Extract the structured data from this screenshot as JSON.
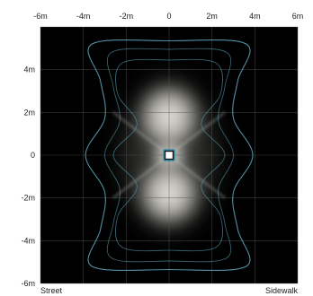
{
  "chart_data": {
    "type": "heatmap",
    "title": "",
    "xlabel": "",
    "ylabel": "",
    "x_ticks": [
      "-6m",
      "-4m",
      "-2m",
      "0",
      "2m",
      "4m",
      "6m"
    ],
    "x_tick_values": [
      -6,
      -4,
      -2,
      0,
      2,
      4,
      6
    ],
    "y_ticks": [
      "4m",
      "2m",
      "0",
      "-2m",
      "-4m",
      "-6m"
    ],
    "y_tick_values": [
      4,
      2,
      0,
      -2,
      -4,
      -6
    ],
    "xlim": [
      -6,
      6
    ],
    "ylim": [
      -6,
      6
    ],
    "grid": true,
    "source": {
      "x": 0,
      "y": 0
    },
    "bottom_left_label": "Street",
    "bottom_right_label": "Sidewalk",
    "colors": {
      "background": "#000000",
      "glow": "#f4f2ea",
      "contour": "#5a9fb2",
      "grid": "#555555",
      "source_fill": "#ffffff",
      "source_stroke": "#111111",
      "source_ring": "#2a8fa8"
    },
    "contour_levels": [
      {
        "level": "outer",
        "radius_x": [
          3.6,
          3.2,
          3.0,
          3.9,
          3.0,
          3.2,
          3.6
        ],
        "radius_y": 5.2
      },
      {
        "level": "middle",
        "radius_x": [
          2.7,
          2.6,
          2.3,
          3.0,
          2.3,
          2.6,
          2.7
        ],
        "radius_y": 4.8
      },
      {
        "level": "inner",
        "radius_x": [
          2.2,
          2.4,
          1.5,
          2.6,
          1.5,
          2.4,
          2.2
        ],
        "radius_y": 4.3
      }
    ]
  }
}
